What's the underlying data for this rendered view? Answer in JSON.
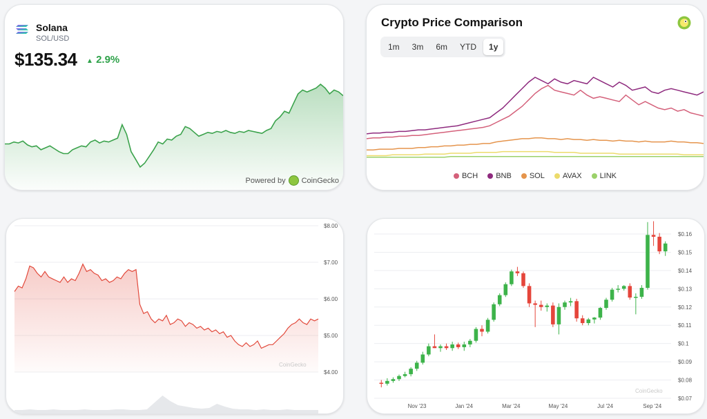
{
  "solana": {
    "name": "Solana",
    "pair": "SOL/USD",
    "price": "$135.34",
    "change": "2.9%",
    "change_color": "#2fa24a",
    "powered_by": "Powered by",
    "brand": "CoinGecko"
  },
  "comparison": {
    "title": "Crypto Price Comparison",
    "tabs": [
      "1m",
      "3m",
      "6m",
      "YTD",
      "1y"
    ],
    "active_tab": "1y",
    "legend": [
      {
        "name": "BCH",
        "color": "#d4607a"
      },
      {
        "name": "BNB",
        "color": "#8e2a7e"
      },
      {
        "name": "SOL",
        "color": "#e5944c"
      },
      {
        "name": "AVAX",
        "color": "#ecdb6b"
      },
      {
        "name": "LINK",
        "color": "#9bd16a"
      }
    ]
  },
  "watermark": "CoinGecko",
  "chart_data": [
    {
      "type": "area",
      "title": "Solana",
      "color": "#3aa24b",
      "values": [
        68,
        68,
        70,
        69,
        71,
        67,
        65,
        66,
        62,
        64,
        66,
        63,
        60,
        58,
        58,
        62,
        64,
        66,
        65,
        70,
        72,
        69,
        71,
        70,
        72,
        74,
        88,
        78,
        60,
        52,
        44,
        48,
        55,
        62,
        70,
        68,
        73,
        72,
        76,
        78,
        86,
        84,
        80,
        76,
        78,
        80,
        79,
        81,
        80,
        82,
        80,
        79,
        81,
        80,
        82,
        81,
        80,
        79,
        82,
        84,
        92,
        96,
        102,
        100,
        110,
        120,
        124,
        122,
        124,
        126,
        130,
        126,
        120,
        124,
        122,
        118
      ]
    },
    {
      "type": "line",
      "title": "Crypto Price Comparison",
      "series": [
        {
          "name": "BCH",
          "values": [
            24,
            25,
            25,
            26,
            26,
            27,
            27,
            28,
            28,
            29,
            30,
            31,
            32,
            33,
            34,
            35,
            36,
            37,
            38,
            40,
            44,
            48,
            52,
            58,
            64,
            72,
            80,
            86,
            90,
            84,
            82,
            80,
            78,
            84,
            78,
            74,
            76,
            74,
            72,
            70,
            78,
            72,
            66,
            70,
            66,
            62,
            60,
            62,
            58,
            60,
            56,
            54,
            52
          ]
        },
        {
          "name": "BNB",
          "values": [
            30,
            31,
            31,
            32,
            32,
            33,
            33,
            34,
            35,
            35,
            36,
            37,
            38,
            39,
            40,
            42,
            44,
            46,
            48,
            50,
            56,
            62,
            70,
            78,
            86,
            94,
            100,
            96,
            92,
            98,
            94,
            92,
            96,
            94,
            92,
            100,
            96,
            92,
            88,
            94,
            90,
            84,
            86,
            88,
            82,
            80,
            84,
            86,
            84,
            82,
            80,
            78,
            82
          ]
        },
        {
          "name": "SOL",
          "values": [
            10,
            10,
            11,
            11,
            11,
            12,
            12,
            12,
            13,
            13,
            14,
            14,
            15,
            15,
            16,
            16,
            17,
            17,
            18,
            18,
            20,
            21,
            22,
            23,
            24,
            24,
            25,
            25,
            24,
            24,
            23,
            24,
            23,
            23,
            22,
            23,
            22,
            22,
            21,
            22,
            21,
            21,
            20,
            21,
            20,
            20,
            20,
            21,
            20,
            20,
            19,
            19,
            18
          ]
        },
        {
          "name": "AVAX",
          "values": [
            3,
            3,
            3,
            3,
            4,
            4,
            4,
            4,
            4,
            5,
            5,
            5,
            5,
            6,
            6,
            6,
            6,
            7,
            7,
            7,
            7,
            8,
            8,
            8,
            8,
            8,
            8,
            8,
            8,
            7,
            7,
            7,
            7,
            6,
            6,
            6,
            6,
            6,
            6,
            5,
            5,
            5,
            5,
            5,
            5,
            5,
            5,
            5,
            5,
            4,
            4,
            4,
            4
          ]
        },
        {
          "name": "LINK",
          "values": [
            1,
            1,
            1,
            1,
            1,
            1,
            1,
            1,
            1,
            1,
            1,
            1,
            1,
            2,
            2,
            2,
            2,
            2,
            2,
            2,
            2,
            2,
            2,
            2,
            2,
            2,
            2,
            2,
            2,
            2,
            2,
            2,
            2,
            2,
            2,
            2,
            2,
            2,
            2,
            2,
            2,
            2,
            2,
            2,
            2,
            2,
            2,
            2,
            2,
            2,
            2,
            2,
            2
          ]
        }
      ]
    },
    {
      "type": "area",
      "title": "",
      "color": "#e2493b",
      "y_ticks": [
        "$8.00",
        "$7.00",
        "$6.00",
        "$5.00",
        "$4.00"
      ],
      "ylim": [
        4.0,
        8.0
      ],
      "values": [
        6.2,
        6.35,
        6.3,
        6.55,
        6.9,
        6.85,
        6.7,
        6.6,
        6.75,
        6.6,
        6.55,
        6.5,
        6.45,
        6.6,
        6.45,
        6.55,
        6.5,
        6.7,
        6.95,
        6.75,
        6.8,
        6.7,
        6.65,
        6.5,
        6.55,
        6.45,
        6.5,
        6.6,
        6.55,
        6.7,
        6.8,
        6.75,
        6.8,
        5.85,
        5.6,
        5.65,
        5.45,
        5.35,
        5.45,
        5.4,
        5.55,
        5.3,
        5.35,
        5.45,
        5.4,
        5.25,
        5.35,
        5.3,
        5.2,
        5.25,
        5.15,
        5.2,
        5.1,
        5.15,
        5.05,
        5.1,
        4.95,
        5.0,
        4.85,
        4.75,
        4.7,
        4.8,
        4.7,
        4.75,
        4.85,
        4.65,
        4.7,
        4.75,
        4.75,
        4.85,
        4.95,
        5.05,
        5.2,
        5.3,
        5.35,
        5.45,
        5.35,
        5.3,
        5.45,
        5.4,
        5.45
      ]
    },
    {
      "type": "candlestick",
      "title": "",
      "y_ticks": [
        "$0.16",
        "$0.15",
        "$0.14",
        "$0.13",
        "$0.12",
        "$0.11",
        "$0.1",
        "$0.09",
        "$0.08",
        "$0.07"
      ],
      "ylim": [
        0.07,
        0.16
      ],
      "x_ticks": [
        "Nov '23",
        "Jan '24",
        "Mar '24",
        "May '24",
        "Jul '24",
        "Sep '24"
      ],
      "ohlc": [
        [
          0.0785,
          0.08,
          0.076,
          0.078
        ],
        [
          0.078,
          0.081,
          0.077,
          0.0795
        ],
        [
          0.0795,
          0.0815,
          0.0785,
          0.0805
        ],
        [
          0.0805,
          0.083,
          0.0795,
          0.0822
        ],
        [
          0.0822,
          0.0845,
          0.0815,
          0.0832
        ],
        [
          0.0832,
          0.087,
          0.082,
          0.0862
        ],
        [
          0.0862,
          0.0905,
          0.085,
          0.0895
        ],
        [
          0.0895,
          0.0955,
          0.0885,
          0.094
        ],
        [
          0.094,
          0.1,
          0.093,
          0.0985
        ],
        [
          0.0985,
          0.105,
          0.0975,
          0.0975
        ],
        [
          0.0975,
          0.0995,
          0.0955,
          0.0985
        ],
        [
          0.0985,
          0.1,
          0.0965,
          0.0975
        ],
        [
          0.0975,
          0.101,
          0.096,
          0.0995
        ],
        [
          0.0995,
          0.1005,
          0.097,
          0.098
        ],
        [
          0.098,
          0.101,
          0.096,
          0.0995
        ],
        [
          0.0995,
          0.1025,
          0.098,
          0.1015
        ],
        [
          0.1015,
          0.109,
          0.1005,
          0.108
        ],
        [
          0.108,
          0.11,
          0.104,
          0.1065
        ],
        [
          0.1065,
          0.114,
          0.1055,
          0.113
        ],
        [
          0.113,
          0.1225,
          0.112,
          0.1215
        ],
        [
          0.1215,
          0.1275,
          0.1205,
          0.1265
        ],
        [
          0.1265,
          0.1335,
          0.1255,
          0.1325
        ],
        [
          0.1325,
          0.1405,
          0.1315,
          0.1395
        ],
        [
          0.1395,
          0.142,
          0.137,
          0.1385
        ],
        [
          0.1385,
          0.1395,
          0.1305,
          0.1315
        ],
        [
          0.1315,
          0.133,
          0.12,
          0.122
        ],
        [
          0.122,
          0.1235,
          0.109,
          0.1212
        ],
        [
          0.1212,
          0.1235,
          0.118,
          0.12
        ],
        [
          0.12,
          0.122,
          0.1175,
          0.1208
        ],
        [
          0.1208,
          0.1225,
          0.109,
          0.1105
        ],
        [
          0.1105,
          0.122,
          0.105,
          0.12
        ],
        [
          0.12,
          0.1235,
          0.1185,
          0.1225
        ],
        [
          0.1225,
          0.125,
          0.1205,
          0.1232
        ],
        [
          0.1232,
          0.1245,
          0.112,
          0.1138
        ],
        [
          0.1138,
          0.1155,
          0.11,
          0.1112
        ],
        [
          0.1112,
          0.114,
          0.11,
          0.1132
        ],
        [
          0.1132,
          0.1145,
          0.111,
          0.1142
        ],
        [
          0.1142,
          0.12,
          0.113,
          0.1195
        ],
        [
          0.1195,
          0.125,
          0.1185,
          0.124
        ],
        [
          0.124,
          0.1305,
          0.123,
          0.1295
        ],
        [
          0.1295,
          0.132,
          0.128,
          0.13
        ],
        [
          0.13,
          0.132,
          0.129,
          0.1315
        ],
        [
          0.1315,
          0.133,
          0.124,
          0.1252
        ],
        [
          0.1252,
          0.1275,
          0.116,
          0.1256
        ],
        [
          0.1256,
          0.132,
          0.1245,
          0.1305
        ],
        [
          0.1305,
          0.1665,
          0.1295,
          0.1595
        ],
        [
          0.1595,
          0.167,
          0.1535,
          0.1585
        ],
        [
          0.1585,
          0.1605,
          0.149,
          0.1505
        ],
        [
          0.1505,
          0.156,
          0.148,
          0.1548
        ]
      ]
    }
  ]
}
